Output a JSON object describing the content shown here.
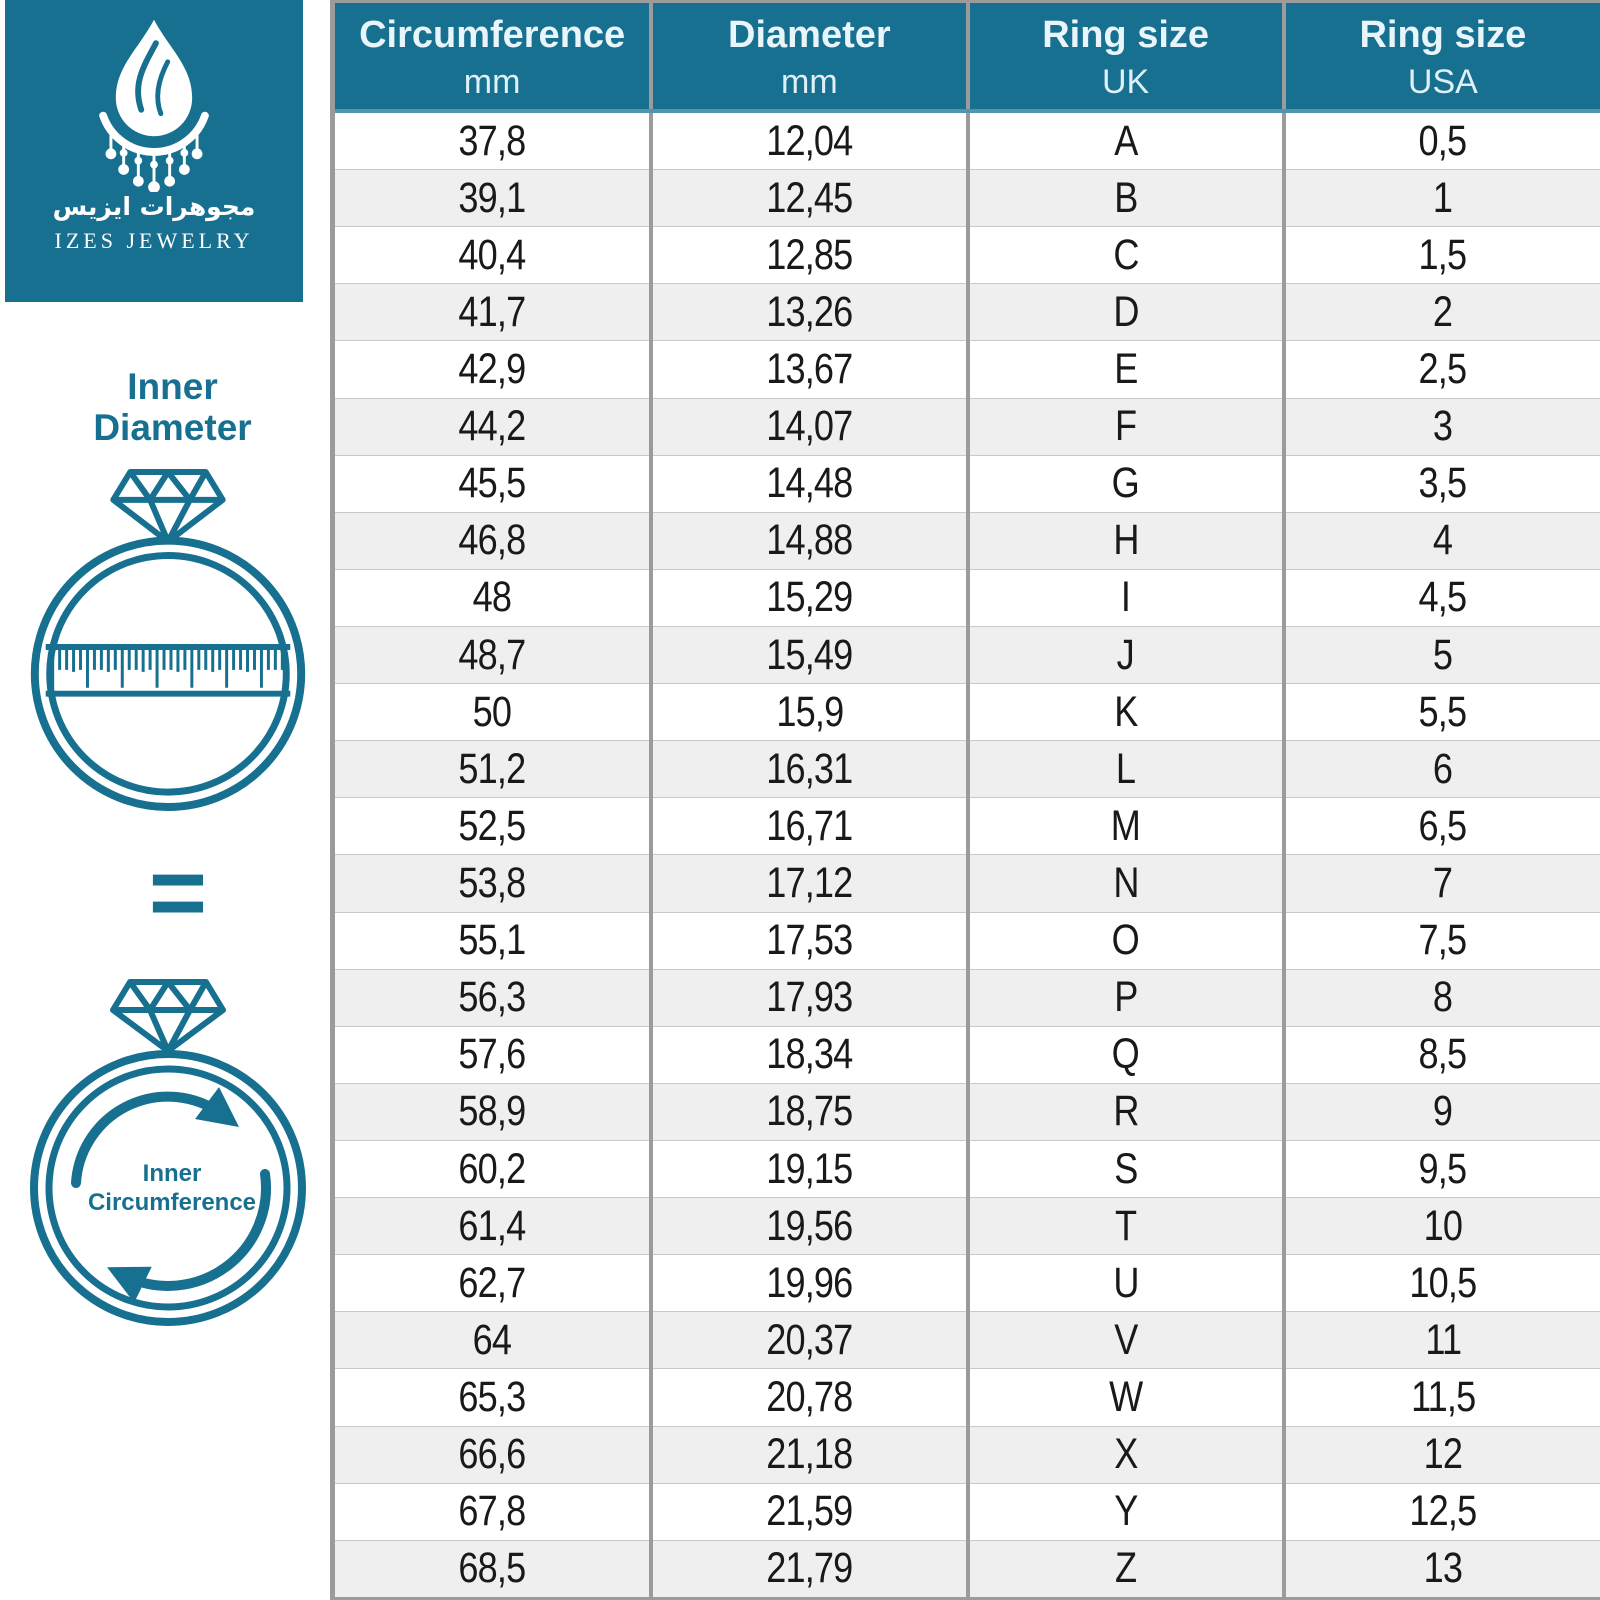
{
  "brand": {
    "arabic_name": "مجوهرات ايزيس",
    "latin_name": "IZES JEWELRY"
  },
  "sidebar": {
    "inner_diameter_label": {
      "line1": "Inner",
      "line2": "Diameter"
    },
    "equals_symbol": "=",
    "inner_circumference_label": {
      "line1": "Inner",
      "line2": "Circumference"
    }
  },
  "colors": {
    "teal": "#17708F",
    "header_text": "#E8F5FA",
    "header_underline": "#4F96AD",
    "row_alt": "#EFEFEF",
    "border_gray": "#9B9B9B",
    "body_text": "#191919"
  },
  "table": {
    "columns": [
      {
        "label": "Circumference",
        "unit": "mm"
      },
      {
        "label": "Diameter",
        "unit": "mm"
      },
      {
        "label": "Ring size",
        "unit": "UK"
      },
      {
        "label": "Ring size",
        "unit": "USA"
      }
    ]
  },
  "chart_data": {
    "type": "table",
    "columns": [
      "Circumference mm",
      "Diameter mm",
      "Ring size UK",
      "Ring size USA"
    ],
    "rows": [
      [
        "37,8",
        "12,04",
        "A",
        "0,5"
      ],
      [
        "39,1",
        "12,45",
        "B",
        "1"
      ],
      [
        "40,4",
        "12,85",
        "C",
        "1,5"
      ],
      [
        "41,7",
        "13,26",
        "D",
        "2"
      ],
      [
        "42,9",
        "13,67",
        "E",
        "2,5"
      ],
      [
        "44,2",
        "14,07",
        "F",
        "3"
      ],
      [
        "45,5",
        "14,48",
        "G",
        "3,5"
      ],
      [
        "46,8",
        "14,88",
        "H",
        "4"
      ],
      [
        "48",
        "15,29",
        "I",
        "4,5"
      ],
      [
        "48,7",
        "15,49",
        "J",
        "5"
      ],
      [
        "50",
        "15,9",
        "K",
        "5,5"
      ],
      [
        "51,2",
        "16,31",
        "L",
        "6"
      ],
      [
        "52,5",
        "16,71",
        "M",
        "6,5"
      ],
      [
        "53,8",
        "17,12",
        "N",
        "7"
      ],
      [
        "55,1",
        "17,53",
        "O",
        "7,5"
      ],
      [
        "56,3",
        "17,93",
        "P",
        "8"
      ],
      [
        "57,6",
        "18,34",
        "Q",
        "8,5"
      ],
      [
        "58,9",
        "18,75",
        "R",
        "9"
      ],
      [
        "60,2",
        "19,15",
        "S",
        "9,5"
      ],
      [
        "61,4",
        "19,56",
        "T",
        "10"
      ],
      [
        "62,7",
        "19,96",
        "U",
        "10,5"
      ],
      [
        "64",
        "20,37",
        "V",
        "11"
      ],
      [
        "65,3",
        "20,78",
        "W",
        "11,5"
      ],
      [
        "66,6",
        "21,18",
        "X",
        "12"
      ],
      [
        "67,8",
        "21,59",
        "Y",
        "12,5"
      ],
      [
        "68,5",
        "21,79",
        "Z",
        "13"
      ]
    ]
  }
}
